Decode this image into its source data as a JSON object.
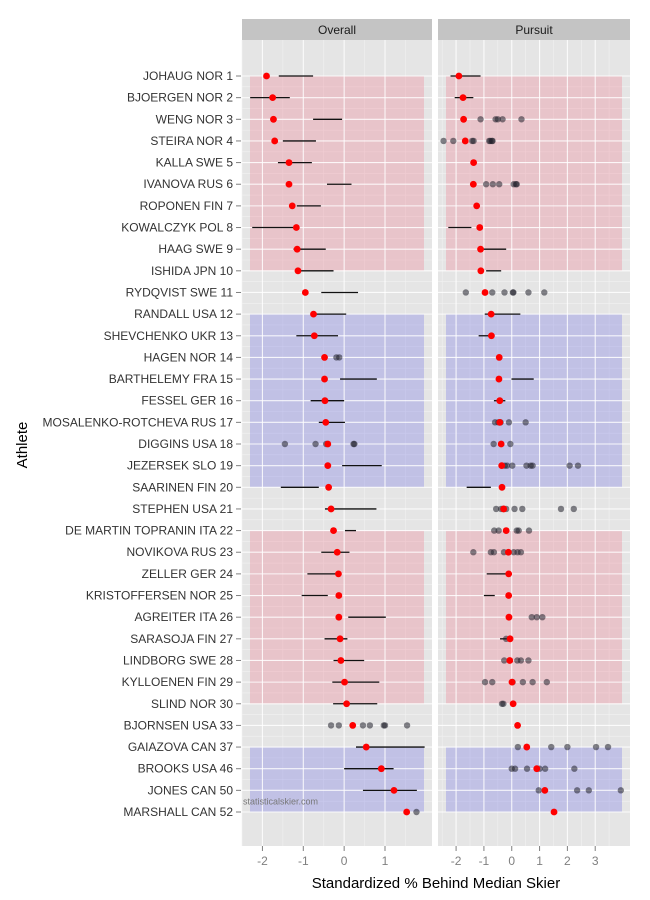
{
  "chart_data": {
    "type": "scatter",
    "title": "",
    "xlabel": "Standardized % Behind Median Skier",
    "ylabel": "Athlete",
    "watermark": "statisticalskier.com",
    "grid": true,
    "legend": "none",
    "colors": {
      "point": "#ff0000",
      "segment": "#000000",
      "other_points": "#333333",
      "band_red": "#e8a0a8",
      "band_blue": "#a0a0e8"
    },
    "categories": [
      "JOHAUG NOR 1",
      "BJOERGEN NOR 2",
      "WENG NOR 3",
      "STEIRA NOR 4",
      "KALLA SWE 5",
      "IVANOVA RUS 6",
      "ROPONEN FIN 7",
      "KOWALCZYK POL 8",
      "HAAG SWE 9",
      "ISHIDA JPN 10",
      "RYDQVIST SWE 11",
      "RANDALL USA 12",
      "SHEVCHENKO UKR 13",
      "HAGEN NOR 14",
      "BARTHELEMY FRA 15",
      "FESSEL GER 16",
      "MOSALENKO-ROTCHEVA RUS 17",
      "DIGGINS USA 18",
      "JEZERSEK SLO 19",
      "SAARINEN FIN 20",
      "STEPHEN USA 21",
      "DE MARTIN TOPRANIN ITA 22",
      "NOVIKOVA RUS 23",
      "ZELLER GER 24",
      "KRISTOFFERSEN NOR 25",
      "AGREITER ITA 26",
      "SARASOJA FIN 27",
      "LINDBORG SWE 28",
      "KYLLOENEN FIN 29",
      "SLIND NOR 30",
      "BJORNSEN USA 33",
      "GAIAZOVA CAN 37",
      "BROOKS USA 46",
      "JONES CAN 50",
      "MARSHALL CAN 52"
    ],
    "bands": [
      {
        "from": "JOHAUG NOR 1",
        "to": "ISHIDA JPN 10",
        "color": "red"
      },
      {
        "from": "RANDALL USA 12",
        "to": "SAARINEN FIN 20",
        "color": "blue"
      },
      {
        "from": "DE MARTIN TOPRANIN ITA 22",
        "to": "SLIND NOR 30",
        "color": "red"
      },
      {
        "from": "GAIAZOVA CAN 37",
        "to": "MARSHALL CAN 52",
        "color": "blue"
      }
    ],
    "panels": [
      {
        "name": "Overall",
        "xlim": [
          -2.5,
          2.15
        ],
        "xticks": [
          -2,
          -1,
          0,
          1
        ],
        "points": [
          -1.9,
          -1.75,
          -1.73,
          -1.7,
          -1.35,
          -1.35,
          -1.27,
          -1.17,
          -1.15,
          -1.13,
          -0.95,
          -0.75,
          -0.73,
          -0.48,
          -0.48,
          -0.47,
          -0.45,
          -0.4,
          -0.4,
          -0.38,
          -0.32,
          -0.26,
          -0.17,
          -0.14,
          -0.13,
          -0.13,
          -0.1,
          -0.08,
          0.01,
          0.06,
          0.21,
          0.54,
          0.91,
          1.22,
          1.53
        ],
        "segments": [
          [
            -1.6,
            -0.76
          ],
          [
            -2.3,
            -1.33
          ],
          [
            -0.76,
            -0.05
          ],
          [
            -1.5,
            -0.69
          ],
          [
            -1.62,
            -0.79
          ],
          [
            -0.42,
            0.18
          ],
          [
            -1.16,
            -0.57
          ],
          [
            -2.25,
            -1.16
          ],
          [
            -1.24,
            -0.45
          ],
          [
            -1.1,
            -0.26
          ],
          [
            -0.56,
            0.34
          ],
          [
            -0.76,
            0.05
          ],
          [
            -1.17,
            -0.15
          ],
          null,
          [
            -0.1,
            0.8
          ],
          [
            -0.82,
            0.0
          ],
          [
            -0.62,
            0.02
          ],
          null,
          [
            -0.05,
            0.92
          ],
          [
            -1.55,
            -0.62
          ],
          [
            -0.47,
            0.79
          ],
          [
            0.02,
            0.29
          ],
          [
            -0.56,
            0.13
          ],
          [
            -0.9,
            -0.14
          ],
          [
            -1.04,
            -0.4
          ],
          [
            0.1,
            1.02
          ],
          [
            -0.48,
            0.08
          ],
          [
            -0.26,
            0.49
          ],
          [
            -0.29,
            0.86
          ],
          [
            -0.27,
            0.81
          ],
          null,
          [
            0.29,
            1.97
          ],
          [
            0.0,
            1.21
          ],
          [
            0.46,
            1.78
          ],
          null
        ],
        "others": [
          [],
          [],
          [],
          [],
          [],
          [],
          [],
          [],
          [],
          [],
          [],
          [],
          [],
          [
            -0.19,
            -0.12
          ],
          [],
          [],
          [],
          [
            -1.45,
            -0.7,
            -0.44,
            0.23,
            0.25
          ],
          [],
          [],
          [],
          [],
          [],
          [],
          [],
          [],
          [],
          [],
          [],
          [],
          [
            -0.32,
            -0.13,
            0.46,
            0.63,
            0.97,
            1.0,
            1.54
          ],
          [],
          [],
          [],
          [
            1.77
          ]
        ]
      },
      {
        "name": "Pursuit",
        "xlim": [
          -2.65,
          4.25
        ],
        "xticks": [
          -2,
          -1,
          0,
          1,
          2,
          3
        ],
        "points": [
          -1.9,
          -1.75,
          -1.73,
          -1.67,
          -1.37,
          -1.38,
          -1.26,
          -1.15,
          -1.12,
          -1.11,
          -0.96,
          -0.74,
          -0.73,
          -0.45,
          -0.46,
          -0.43,
          -0.43,
          -0.38,
          -0.36,
          -0.35,
          -0.29,
          -0.2,
          -0.12,
          -0.11,
          -0.11,
          -0.1,
          -0.06,
          -0.07,
          0.01,
          0.05,
          0.21,
          0.54,
          0.9,
          1.19,
          1.52
        ],
        "segments": [
          [
            -2.2,
            -1.12
          ],
          [
            -2.05,
            -1.38
          ],
          null,
          null,
          null,
          null,
          null,
          [
            -2.28,
            -1.45
          ],
          [
            -1.12,
            -0.2
          ],
          [
            -0.92,
            -0.38
          ],
          null,
          [
            -0.97,
            0.31
          ],
          [
            -1.19,
            -0.66
          ],
          null,
          [
            -0.01,
            0.79
          ],
          [
            -0.64,
            -0.23
          ],
          null,
          null,
          null,
          [
            -1.62,
            -0.75
          ],
          null,
          null,
          null,
          [
            -0.9,
            -0.22
          ],
          [
            -1.0,
            -0.61
          ],
          null,
          [
            -0.42,
            -0.02
          ],
          null,
          null,
          null,
          null,
          null,
          null,
          null,
          null
        ],
        "others": [
          [],
          [],
          [
            -1.12,
            -0.58,
            -0.5,
            -0.33,
            0.35
          ],
          [
            -2.45,
            -2.1,
            -1.42,
            -1.37,
            -0.81,
            -0.77,
            -0.71,
            -0.69
          ],
          [],
          [
            -0.92,
            -0.68,
            -0.45,
            0.07,
            0.15,
            0.18
          ],
          [],
          [],
          [],
          [],
          [
            -1.65,
            -0.7,
            -0.26,
            0.04,
            0.06,
            0.6,
            1.17
          ],
          [],
          [],
          [],
          [],
          [],
          [
            -0.6,
            -0.48,
            -0.4,
            -0.1,
            0.5
          ],
          [
            -0.65,
            -0.05
          ],
          [
            -0.25,
            -0.17,
            0.02,
            0.53,
            0.68,
            0.75,
            2.08,
            2.38
          ],
          [],
          [
            -0.56,
            -0.38,
            -0.3,
            -0.2,
            0.1,
            0.38,
            1.77,
            2.23
          ],
          [
            -0.63,
            -0.47,
            0.18,
            0.25,
            0.62
          ],
          [
            -1.38,
            -0.75,
            -0.64,
            -0.28,
            0.07,
            0.21,
            0.33
          ],
          [],
          [],
          [
            0.72,
            0.9,
            1.1
          ],
          [
            -0.2
          ],
          [
            -0.27,
            0.2,
            0.33,
            0.6
          ],
          [
            -0.96,
            -0.7,
            0.03,
            0.4,
            0.75,
            1.26
          ],
          [
            -0.35,
            -0.3
          ],
          [],
          [
            0.22,
            1.42,
            2.0,
            3.03,
            3.46
          ],
          [
            0.0,
            0.12,
            0.55,
            1.0,
            1.2,
            2.25
          ],
          [
            0.97,
            2.35,
            2.77,
            3.92
          ],
          []
        ]
      }
    ]
  }
}
